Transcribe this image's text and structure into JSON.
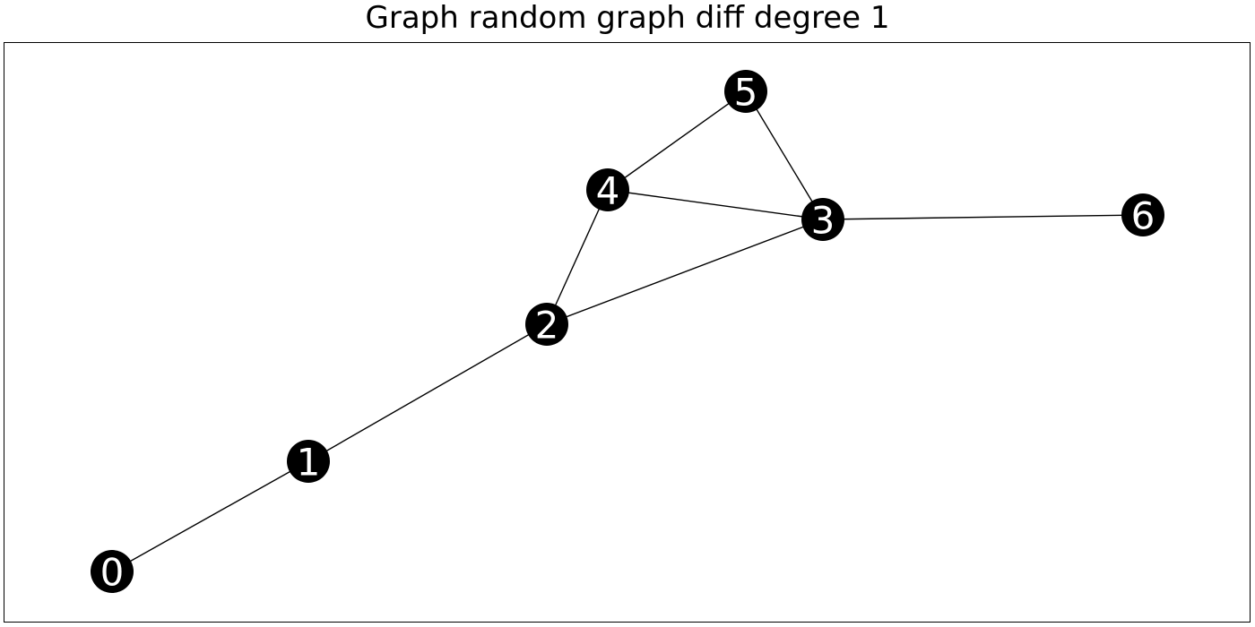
{
  "title": "Graph random graph diff degree 1",
  "colors": {
    "node_fill": "#000000",
    "node_label": "#ffffff",
    "edge": "#000000"
  },
  "graph": {
    "nodes": [
      {
        "id": "0",
        "label": "0"
      },
      {
        "id": "1",
        "label": "1"
      },
      {
        "id": "2",
        "label": "2"
      },
      {
        "id": "3",
        "label": "3"
      },
      {
        "id": "4",
        "label": "4"
      },
      {
        "id": "5",
        "label": "5"
      },
      {
        "id": "6",
        "label": "6"
      }
    ],
    "edges": [
      [
        "0",
        "1"
      ],
      [
        "1",
        "2"
      ],
      [
        "2",
        "4"
      ],
      [
        "2",
        "3"
      ],
      [
        "4",
        "5"
      ],
      [
        "4",
        "3"
      ],
      [
        "5",
        "3"
      ],
      [
        "3",
        "6"
      ]
    ]
  }
}
